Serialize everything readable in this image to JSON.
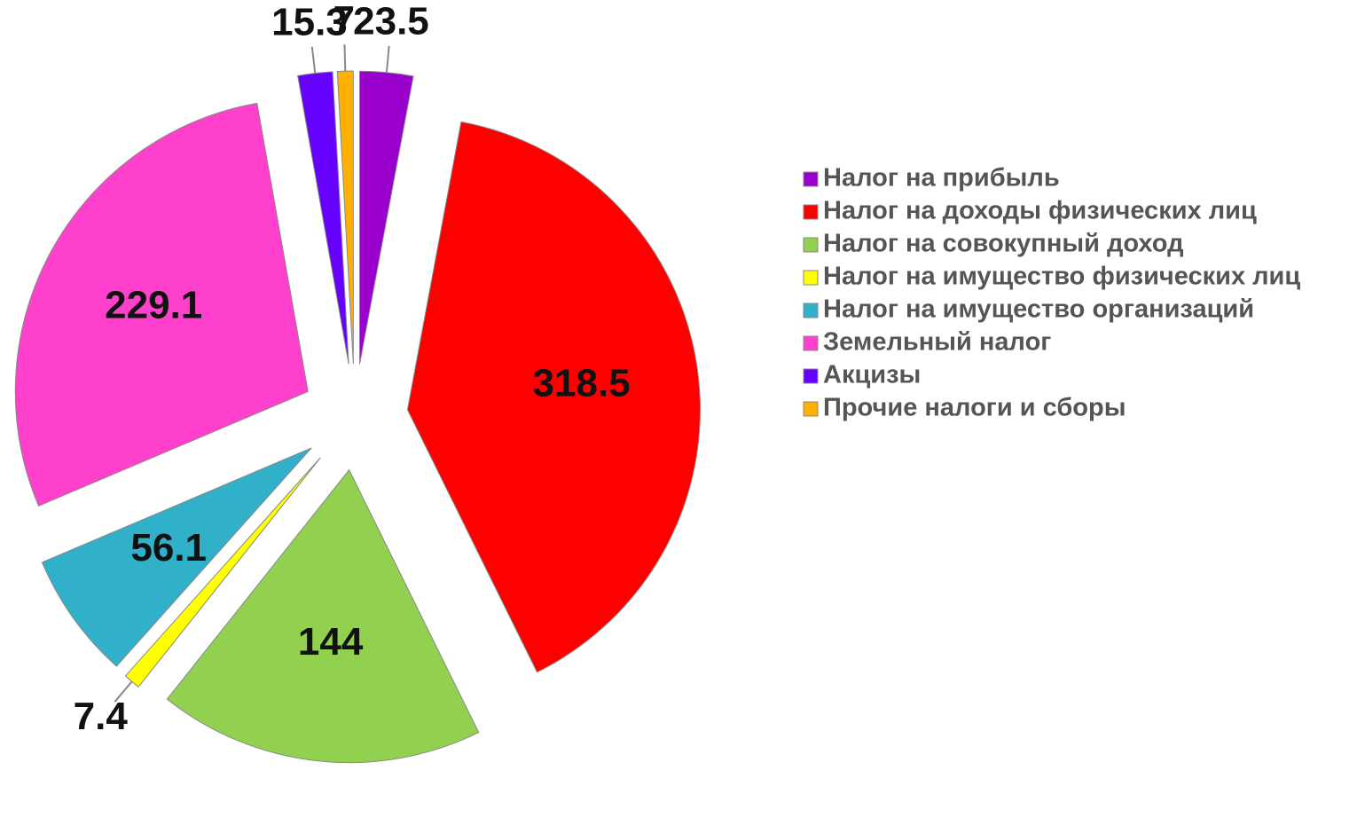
{
  "chart_data": {
    "type": "pie",
    "categories": [
      "Налог на прибыль",
      "Налог на доходы физических лиц",
      "Налог на совокупный доход",
      "Налог на имущество физических лиц",
      "Налог на имущество организаций",
      "Земельный налог",
      "Акцизы",
      "Прочие налоги и сборы"
    ],
    "values": [
      23.5,
      318.5,
      144,
      7.4,
      56.1,
      229.1,
      15.3,
      7
    ],
    "colors": [
      "#9900cc",
      "#ff0000",
      "#92d050",
      "#ffff00",
      "#31b0c9",
      "#ff40cc",
      "#6600ff",
      "#ffb000"
    ],
    "legend": "right"
  }
}
